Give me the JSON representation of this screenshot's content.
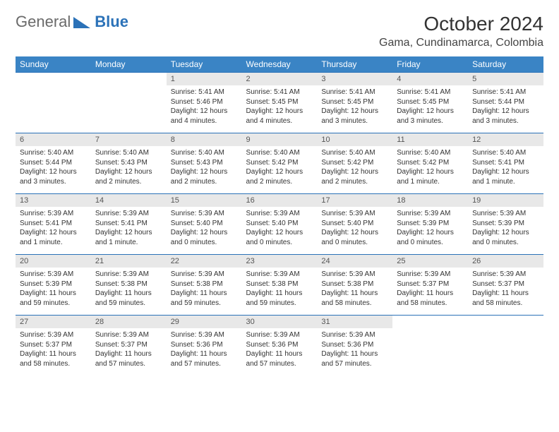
{
  "brand": {
    "part1": "General",
    "part2": "Blue"
  },
  "header": {
    "month_title": "October 2024",
    "location": "Gama, Cundinamarca, Colombia"
  },
  "weekdays": [
    "Sunday",
    "Monday",
    "Tuesday",
    "Wednesday",
    "Thursday",
    "Friday",
    "Saturday"
  ],
  "colors": {
    "header_bg": "#3a84c5",
    "header_fg": "#ffffff",
    "rule": "#2b72b8",
    "daynum_bg": "#e8e8e8",
    "page_bg": "#ffffff",
    "text": "#333333"
  },
  "typography": {
    "month_title_fontsize": 28,
    "location_fontsize": 16,
    "weekday_fontsize": 12,
    "daynum_fontsize": 11,
    "body_fontsize": 10
  },
  "layout": {
    "cols": 7,
    "rows": 5,
    "start_weekday_index": 2
  },
  "days": [
    {
      "n": "1",
      "sunrise": "5:41 AM",
      "sunset": "5:46 PM",
      "daylight": "12 hours and 4 minutes."
    },
    {
      "n": "2",
      "sunrise": "5:41 AM",
      "sunset": "5:45 PM",
      "daylight": "12 hours and 4 minutes."
    },
    {
      "n": "3",
      "sunrise": "5:41 AM",
      "sunset": "5:45 PM",
      "daylight": "12 hours and 3 minutes."
    },
    {
      "n": "4",
      "sunrise": "5:41 AM",
      "sunset": "5:45 PM",
      "daylight": "12 hours and 3 minutes."
    },
    {
      "n": "5",
      "sunrise": "5:41 AM",
      "sunset": "5:44 PM",
      "daylight": "12 hours and 3 minutes."
    },
    {
      "n": "6",
      "sunrise": "5:40 AM",
      "sunset": "5:44 PM",
      "daylight": "12 hours and 3 minutes."
    },
    {
      "n": "7",
      "sunrise": "5:40 AM",
      "sunset": "5:43 PM",
      "daylight": "12 hours and 2 minutes."
    },
    {
      "n": "8",
      "sunrise": "5:40 AM",
      "sunset": "5:43 PM",
      "daylight": "12 hours and 2 minutes."
    },
    {
      "n": "9",
      "sunrise": "5:40 AM",
      "sunset": "5:42 PM",
      "daylight": "12 hours and 2 minutes."
    },
    {
      "n": "10",
      "sunrise": "5:40 AM",
      "sunset": "5:42 PM",
      "daylight": "12 hours and 2 minutes."
    },
    {
      "n": "11",
      "sunrise": "5:40 AM",
      "sunset": "5:42 PM",
      "daylight": "12 hours and 1 minute."
    },
    {
      "n": "12",
      "sunrise": "5:40 AM",
      "sunset": "5:41 PM",
      "daylight": "12 hours and 1 minute."
    },
    {
      "n": "13",
      "sunrise": "5:39 AM",
      "sunset": "5:41 PM",
      "daylight": "12 hours and 1 minute."
    },
    {
      "n": "14",
      "sunrise": "5:39 AM",
      "sunset": "5:41 PM",
      "daylight": "12 hours and 1 minute."
    },
    {
      "n": "15",
      "sunrise": "5:39 AM",
      "sunset": "5:40 PM",
      "daylight": "12 hours and 0 minutes."
    },
    {
      "n": "16",
      "sunrise": "5:39 AM",
      "sunset": "5:40 PM",
      "daylight": "12 hours and 0 minutes."
    },
    {
      "n": "17",
      "sunrise": "5:39 AM",
      "sunset": "5:40 PM",
      "daylight": "12 hours and 0 minutes."
    },
    {
      "n": "18",
      "sunrise": "5:39 AM",
      "sunset": "5:39 PM",
      "daylight": "12 hours and 0 minutes."
    },
    {
      "n": "19",
      "sunrise": "5:39 AM",
      "sunset": "5:39 PM",
      "daylight": "12 hours and 0 minutes."
    },
    {
      "n": "20",
      "sunrise": "5:39 AM",
      "sunset": "5:39 PM",
      "daylight": "11 hours and 59 minutes."
    },
    {
      "n": "21",
      "sunrise": "5:39 AM",
      "sunset": "5:38 PM",
      "daylight": "11 hours and 59 minutes."
    },
    {
      "n": "22",
      "sunrise": "5:39 AM",
      "sunset": "5:38 PM",
      "daylight": "11 hours and 59 minutes."
    },
    {
      "n": "23",
      "sunrise": "5:39 AM",
      "sunset": "5:38 PM",
      "daylight": "11 hours and 59 minutes."
    },
    {
      "n": "24",
      "sunrise": "5:39 AM",
      "sunset": "5:38 PM",
      "daylight": "11 hours and 58 minutes."
    },
    {
      "n": "25",
      "sunrise": "5:39 AM",
      "sunset": "5:37 PM",
      "daylight": "11 hours and 58 minutes."
    },
    {
      "n": "26",
      "sunrise": "5:39 AM",
      "sunset": "5:37 PM",
      "daylight": "11 hours and 58 minutes."
    },
    {
      "n": "27",
      "sunrise": "5:39 AM",
      "sunset": "5:37 PM",
      "daylight": "11 hours and 58 minutes."
    },
    {
      "n": "28",
      "sunrise": "5:39 AM",
      "sunset": "5:37 PM",
      "daylight": "11 hours and 57 minutes."
    },
    {
      "n": "29",
      "sunrise": "5:39 AM",
      "sunset": "5:36 PM",
      "daylight": "11 hours and 57 minutes."
    },
    {
      "n": "30",
      "sunrise": "5:39 AM",
      "sunset": "5:36 PM",
      "daylight": "11 hours and 57 minutes."
    },
    {
      "n": "31",
      "sunrise": "5:39 AM",
      "sunset": "5:36 PM",
      "daylight": "11 hours and 57 minutes."
    }
  ],
  "labels": {
    "sunrise": "Sunrise:",
    "sunset": "Sunset:",
    "daylight": "Daylight:"
  }
}
